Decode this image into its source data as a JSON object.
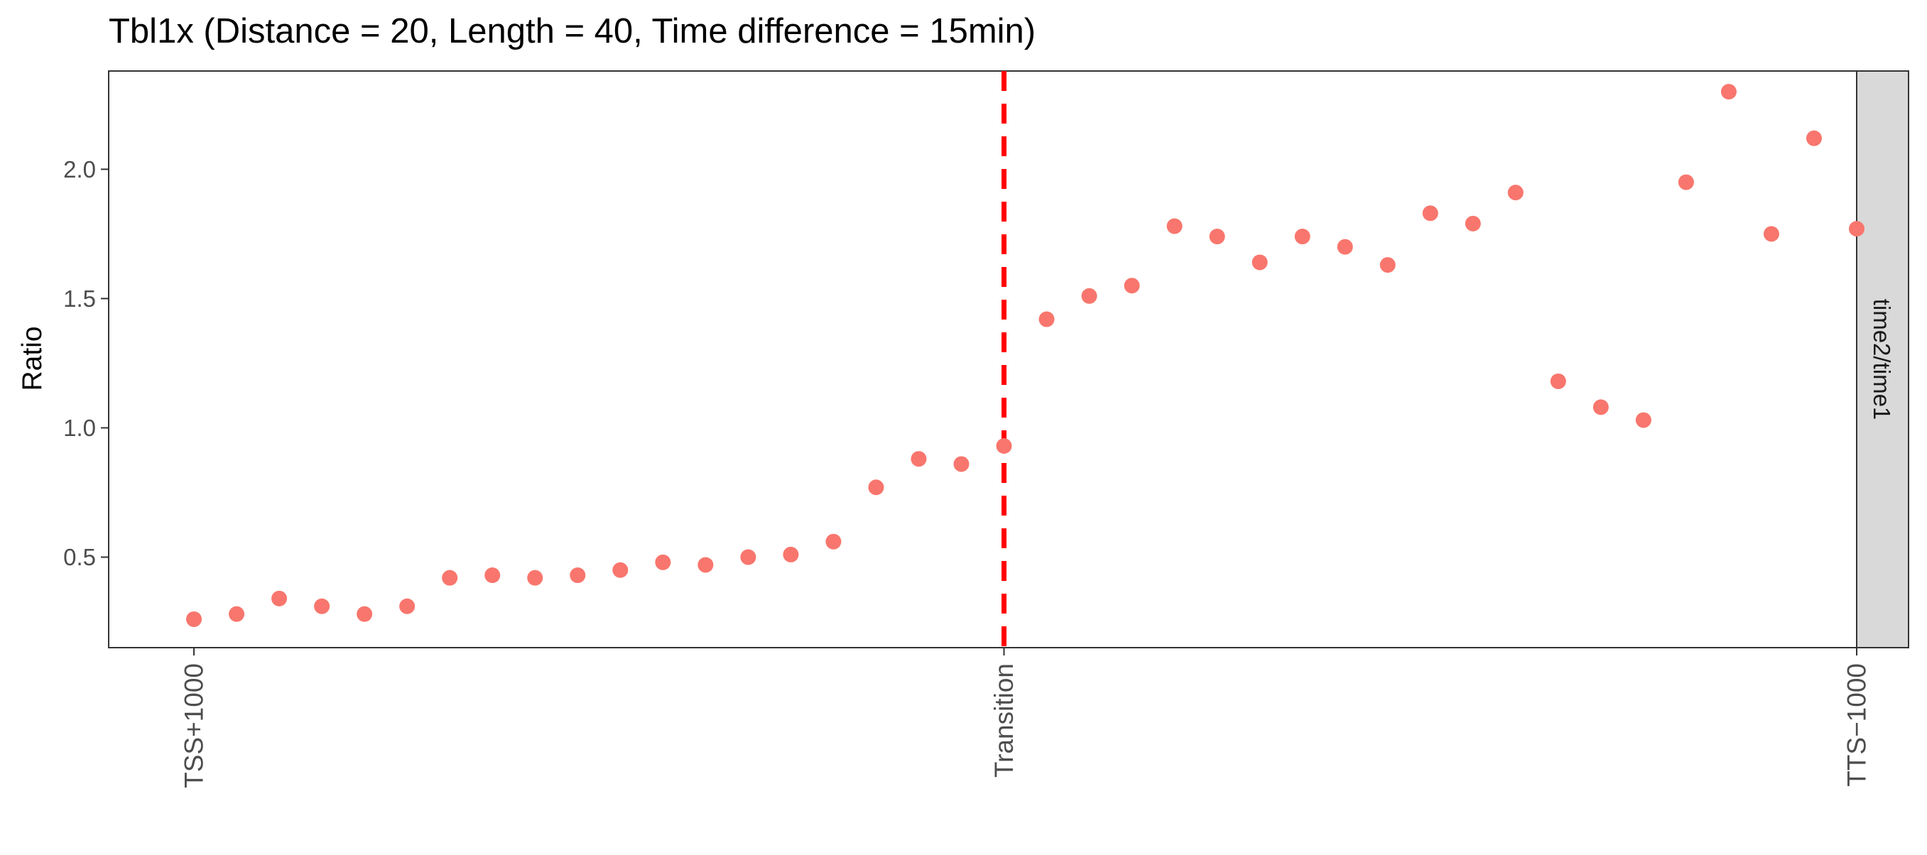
{
  "chart_data": {
    "type": "scatter",
    "title": "Tbl1x (Distance = 20, Length = 40, Time difference = 15min)",
    "xlabel": "",
    "ylabel": "Ratio",
    "facet_label": "time2/time1",
    "x_range": [
      -1,
      40
    ],
    "ylim": [
      0.15,
      2.38
    ],
    "y_ticks": [
      0.5,
      1.0,
      1.5,
      2.0
    ],
    "y_tick_labels": [
      "0.5",
      "1.0",
      "1.5",
      "2.0"
    ],
    "x_ticks": [
      {
        "x": 1,
        "label": "TSS+1000"
      },
      {
        "x": 20,
        "label": "Transition"
      },
      {
        "x": 40,
        "label": "TTS−1000"
      }
    ],
    "transition_line": {
      "x": 20,
      "color": "#ff0000",
      "style": "dashed"
    },
    "point_color": "#f8766d",
    "grid": false,
    "legend": "none",
    "series": [
      {
        "x": [
          1,
          2,
          3,
          4,
          5,
          6,
          7,
          8,
          9,
          10,
          11,
          12,
          13,
          14,
          15,
          16,
          17,
          18,
          19,
          20,
          21,
          22,
          23,
          24,
          25,
          26,
          27,
          28,
          29,
          30,
          31,
          32,
          33,
          34,
          35,
          36,
          37,
          38,
          39,
          40
        ],
        "values": [
          0.26,
          0.28,
          0.34,
          0.31,
          0.28,
          0.31,
          0.42,
          0.43,
          0.42,
          0.43,
          0.45,
          0.48,
          0.47,
          0.5,
          0.51,
          0.56,
          0.77,
          0.88,
          0.86,
          0.93,
          1.42,
          1.51,
          1.55,
          1.78,
          1.74,
          1.64,
          1.74,
          1.7,
          1.63,
          1.83,
          1.79,
          1.91,
          1.18,
          1.08,
          1.03,
          1.95,
          2.3,
          1.75,
          2.12,
          1.77
        ]
      }
    ]
  }
}
